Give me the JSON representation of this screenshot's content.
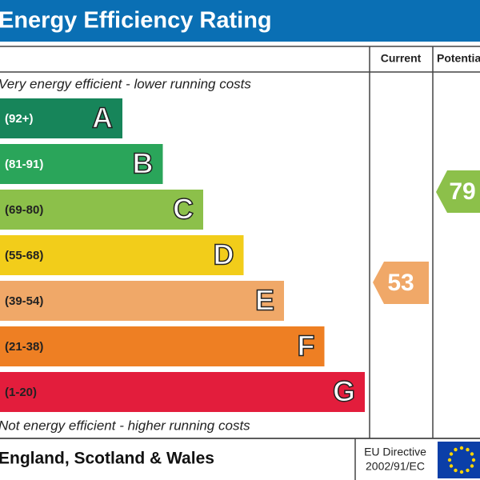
{
  "header": {
    "title": "Energy Efficiency Rating"
  },
  "columns": [
    "Current",
    "Potential"
  ],
  "top_note": "Very energy efficient - lower running costs",
  "bottom_note": "Not energy efficient - higher running costs",
  "bands": [
    {
      "range": "(92+)",
      "letter": "A",
      "color": "#17855a"
    },
    {
      "range": "(81-91)",
      "letter": "B",
      "color": "#2aa55a"
    },
    {
      "range": "(69-80)",
      "letter": "C",
      "color": "#8cc04a"
    },
    {
      "range": "(55-68)",
      "letter": "D",
      "color": "#f2cd1a"
    },
    {
      "range": "(39-54)",
      "letter": "E",
      "color": "#f0a868"
    },
    {
      "range": "(21-38)",
      "letter": "F",
      "color": "#ee7f23"
    },
    {
      "range": "(1-20)",
      "letter": "G",
      "color": "#e31d3c"
    }
  ],
  "current": 53,
  "potential": 79,
  "footer": {
    "region": "England, Scotland & Wales",
    "directive": [
      "EU Directive",
      "2002/91/EC"
    ]
  }
}
